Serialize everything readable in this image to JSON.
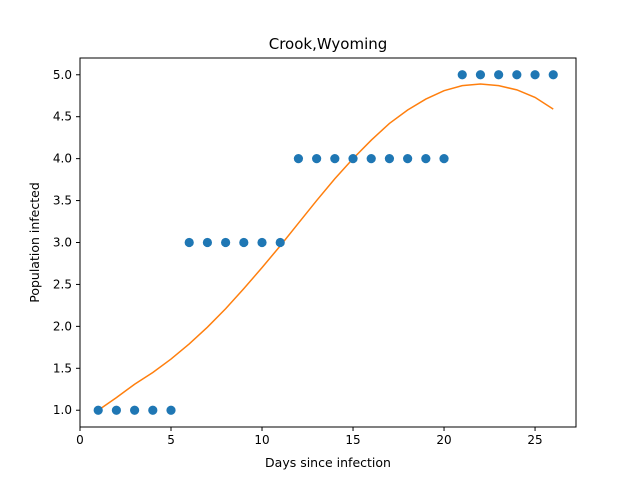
{
  "chart_data": {
    "type": "scatter",
    "title": "Crook,Wyoming",
    "xlabel": "Days since infection",
    "ylabel": "Population infected",
    "xlim": [
      0,
      27.25
    ],
    "ylim": [
      0.8,
      5.2
    ],
    "xticks": [
      0,
      5,
      10,
      15,
      20,
      25
    ],
    "yticks": [
      1.0,
      1.5,
      2.0,
      2.5,
      3.0,
      3.5,
      4.0,
      4.5,
      5.0
    ],
    "xtick_labels": [
      "0",
      "5",
      "10",
      "15",
      "20",
      "25"
    ],
    "ytick_labels": [
      "1.0",
      "1.5",
      "2.0",
      "2.5",
      "3.0",
      "3.5",
      "4.0",
      "4.5",
      "5.0"
    ],
    "grid": false,
    "series": [
      {
        "type": "scatter",
        "color": "#1f77b4",
        "x": [
          1,
          2,
          3,
          4,
          5,
          6,
          7,
          8,
          9,
          10,
          11,
          12,
          13,
          14,
          15,
          16,
          17,
          18,
          19,
          20,
          21,
          22,
          23,
          24,
          25,
          26
        ],
        "y": [
          1,
          1,
          1,
          1,
          1,
          3,
          3,
          3,
          3,
          3,
          3,
          4,
          4,
          4,
          4,
          4,
          4,
          4,
          4,
          4,
          5,
          5,
          5,
          5,
          5,
          5
        ]
      },
      {
        "type": "line",
        "color": "#ff7f0e",
        "x": [
          1,
          2,
          3,
          4,
          5,
          6,
          7,
          8,
          9,
          10,
          11,
          12,
          13,
          14,
          15,
          16,
          17,
          18,
          19,
          20,
          21,
          22,
          23,
          24,
          25,
          26
        ],
        "y": [
          1.0,
          1.15,
          1.31,
          1.45,
          1.61,
          1.79,
          1.99,
          2.21,
          2.45,
          2.7,
          2.96,
          3.23,
          3.5,
          3.76,
          4.0,
          4.22,
          4.42,
          4.58,
          4.71,
          4.81,
          4.87,
          4.89,
          4.87,
          4.82,
          4.73,
          4.59
        ]
      }
    ]
  }
}
